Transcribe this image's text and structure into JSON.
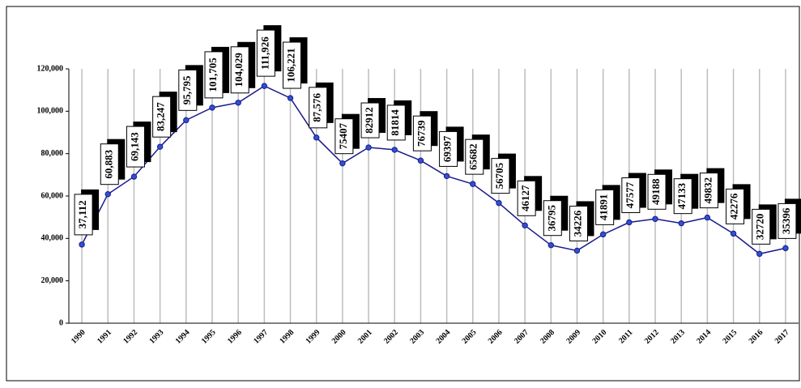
{
  "chart_data": {
    "type": "line",
    "categories": [
      "1990",
      "1991",
      "1992",
      "1993",
      "1994",
      "1995",
      "1996",
      "1997",
      "1998",
      "1999",
      "2000",
      "2001",
      "2002",
      "2003",
      "2004",
      "2005",
      "2006",
      "2007",
      "2008",
      "2009",
      "2010",
      "2011",
      "2012",
      "2013",
      "2014",
      "2015",
      "2016",
      "2017"
    ],
    "values": [
      37112,
      60883,
      69143,
      83247,
      95795,
      101705,
      104029,
      111926,
      106221,
      87576,
      75407,
      82912,
      81814,
      76739,
      69397,
      65682,
      56705,
      46127,
      36795,
      34226,
      41891,
      47577,
      49188,
      47133,
      49832,
      42276,
      32720,
      35396
    ],
    "value_labels": [
      "37,112",
      "60,883",
      "69,143",
      "83,247",
      "95,795",
      "101,705",
      "104,029",
      "111,926",
      "106,221",
      "87,576",
      "75407",
      "82912",
      "81814",
      "76739",
      "69397",
      "65682",
      "56705",
      "46127",
      "36795",
      "34226",
      "41891",
      "47577",
      "49188",
      "47133",
      "49832",
      "42276",
      "32720",
      "35396"
    ],
    "color": "#1a1a8c",
    "ylim": [
      0,
      120000
    ],
    "yticks": [
      0,
      {
        "value": 20000,
        "label": "20,000"
      },
      {
        "value": 40000,
        "label": "40,000"
      },
      {
        "value": 60000,
        "label": "60,000"
      },
      {
        "value": 80000,
        "label": "80,000"
      },
      {
        "value": 100000,
        "label": "100,000"
      },
      {
        "value": 120000,
        "label": "120,000"
      }
    ],
    "grid": true
  }
}
